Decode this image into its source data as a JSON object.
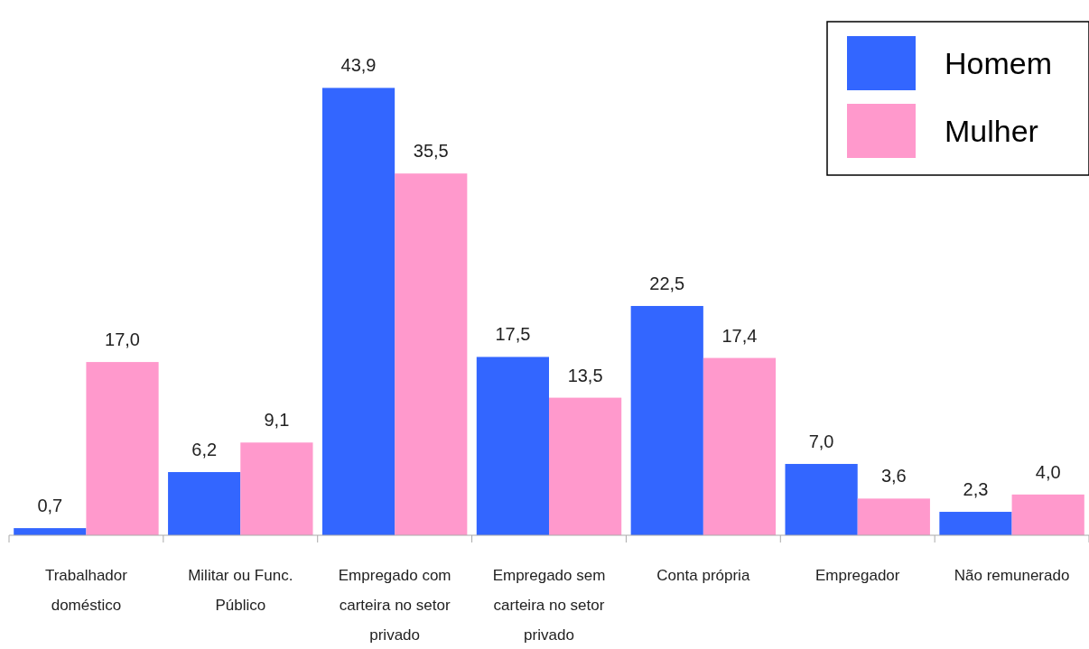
{
  "chart_data": {
    "type": "bar",
    "categories": [
      "Trabalhador doméstico",
      "Militar ou Func. Público",
      "Empregado com carteira no setor privado",
      "Empregado sem carteira no setor privado",
      "Conta própria",
      "Empregador",
      "Não remunerado"
    ],
    "series": [
      {
        "name": "Homem",
        "color": "#3366ff",
        "values": [
          0.7,
          6.2,
          43.9,
          17.5,
          22.5,
          7.0,
          2.3
        ],
        "value_labels": [
          "0,7",
          "6,2",
          "43,9",
          "17,5",
          "22,5",
          "7,0",
          "2,3"
        ]
      },
      {
        "name": "Mulher",
        "color": "#ff99cc",
        "values": [
          17.0,
          9.1,
          35.5,
          13.5,
          17.4,
          3.6,
          4.0
        ],
        "value_labels": [
          "17,0",
          "9,1",
          "35,5",
          "13,5",
          "17,4",
          "3,6",
          "4,0"
        ]
      }
    ],
    "legend": "top right"
  }
}
